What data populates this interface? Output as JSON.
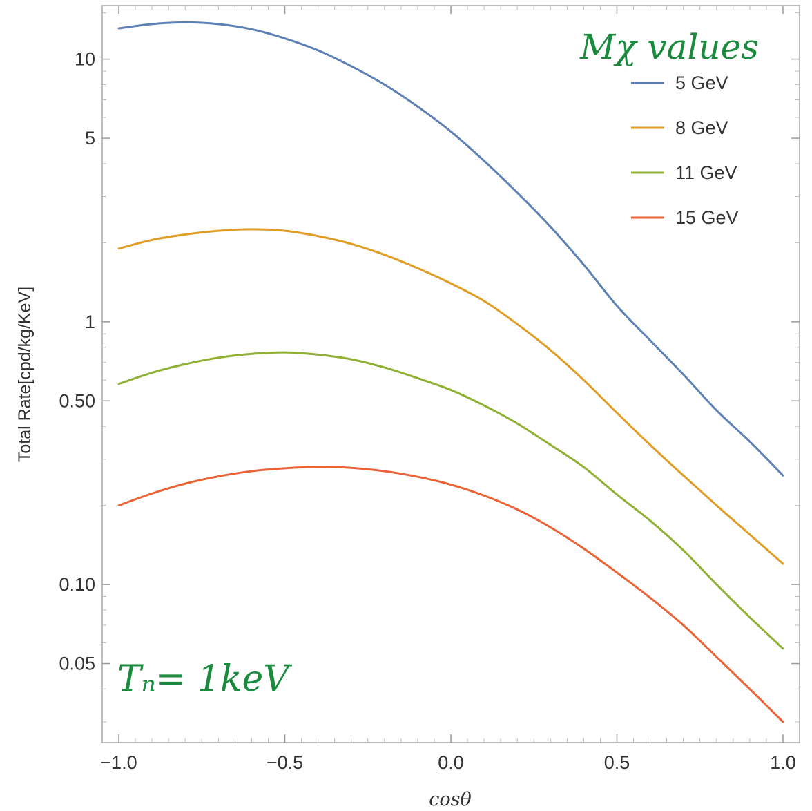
{
  "chart_data": {
    "type": "line",
    "xlabel": "cosθ",
    "ylabel": "Total Rate[cpd/kg/KeV]",
    "xlim": [
      -1.05,
      1.05
    ],
    "ylim": [
      0.025,
      16
    ],
    "yscale": "log",
    "x_ticks": [
      -1.0,
      -0.5,
      0.0,
      0.5,
      1.0
    ],
    "x_tick_labels": [
      "−1.0",
      "−0.5",
      "0.0",
      "0.5",
      "1.0"
    ],
    "y_ticks": [
      0.05,
      0.1,
      0.5,
      1,
      5,
      10
    ],
    "y_tick_labels": [
      "0.05",
      "0.10",
      "0.50",
      "1",
      "5",
      "10"
    ],
    "grid": false,
    "legend_title": "Mχ values",
    "legend_position": "top-right",
    "annotation": "Tₙ= 1keV",
    "x": [
      -1.0,
      -0.9,
      -0.8,
      -0.7,
      -0.6,
      -0.5,
      -0.4,
      -0.3,
      -0.2,
      -0.1,
      0.0,
      0.1,
      0.2,
      0.3,
      0.4,
      0.5,
      0.6,
      0.7,
      0.8,
      0.9,
      1.0
    ],
    "series": [
      {
        "name": "5 GeV",
        "color": "#5e81b5",
        "values": [
          13.1,
          13.6,
          13.8,
          13.6,
          13.0,
          12.0,
          10.8,
          9.4,
          8.0,
          6.6,
          5.3,
          4.1,
          3.1,
          2.3,
          1.65,
          1.15,
          0.85,
          0.63,
          0.46,
          0.35,
          0.26
        ]
      },
      {
        "name": "8 GeV",
        "color": "#e19c24",
        "values": [
          1.9,
          2.05,
          2.15,
          2.22,
          2.25,
          2.22,
          2.12,
          1.98,
          1.8,
          1.6,
          1.4,
          1.2,
          0.98,
          0.78,
          0.6,
          0.45,
          0.34,
          0.26,
          0.2,
          0.155,
          0.12
        ]
      },
      {
        "name": "11 GeV",
        "color": "#8fb032",
        "values": [
          0.58,
          0.64,
          0.69,
          0.73,
          0.755,
          0.765,
          0.75,
          0.72,
          0.67,
          0.61,
          0.55,
          0.48,
          0.41,
          0.34,
          0.28,
          0.22,
          0.175,
          0.135,
          0.1,
          0.075,
          0.057
        ]
      },
      {
        "name": "15 GeV",
        "color": "#eb6235",
        "values": [
          0.2,
          0.222,
          0.242,
          0.258,
          0.27,
          0.277,
          0.28,
          0.278,
          0.27,
          0.257,
          0.24,
          0.218,
          0.193,
          0.165,
          0.137,
          0.111,
          0.089,
          0.07,
          0.053,
          0.04,
          0.03
        ]
      }
    ]
  }
}
